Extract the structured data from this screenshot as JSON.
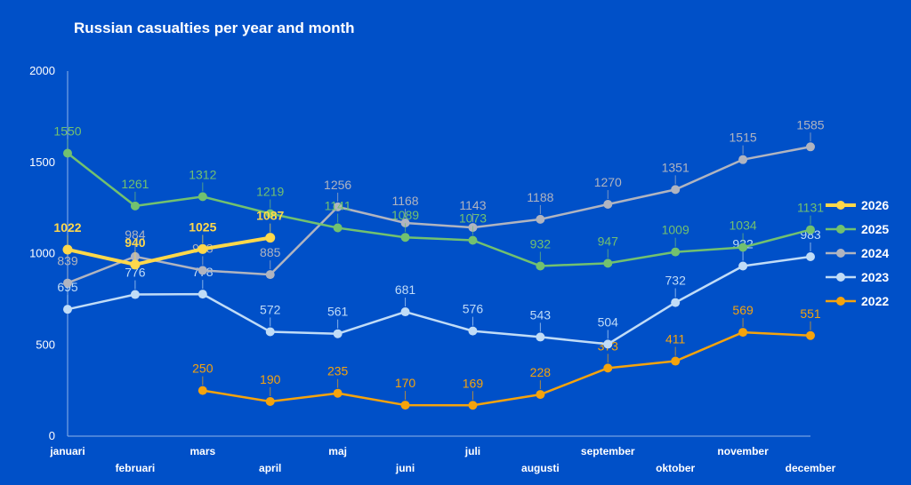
{
  "chart_data": {
    "type": "line",
    "title": "Russian casualties per year and month",
    "xlabel": "",
    "ylabel": "",
    "ylim": [
      0,
      2000
    ],
    "yticks": [
      0,
      500,
      1000,
      1500,
      2000
    ],
    "grid": false,
    "legend_position": "right",
    "categories": [
      "januari",
      "februari",
      "mars",
      "april",
      "maj",
      "juni",
      "juli",
      "augusti",
      "september",
      "oktober",
      "november",
      "december"
    ],
    "series": [
      {
        "name": "2026",
        "color": "#ffd84a",
        "values": [
          1022,
          940,
          1025,
          1087,
          null,
          null,
          null,
          null,
          null,
          null,
          null,
          null
        ]
      },
      {
        "name": "2025",
        "color": "#72c16f",
        "values": [
          1550,
          1261,
          1312,
          1219,
          1141,
          1089,
          1073,
          932,
          947,
          1009,
          1034,
          1131
        ]
      },
      {
        "name": "2024",
        "color": "#b0b4c0",
        "values": [
          839,
          984,
          908,
          885,
          1256,
          1168,
          1143,
          1188,
          1270,
          1351,
          1515,
          1585
        ]
      },
      {
        "name": "2023",
        "color": "#c0dcf7",
        "values": [
          695,
          776,
          778,
          572,
          561,
          681,
          576,
          543,
          504,
          732,
          932,
          983
        ]
      },
      {
        "name": "2022",
        "color": "#f5a30c",
        "values": [
          null,
          null,
          250,
          190,
          235,
          170,
          169,
          228,
          373,
          411,
          569,
          551
        ]
      }
    ]
  }
}
